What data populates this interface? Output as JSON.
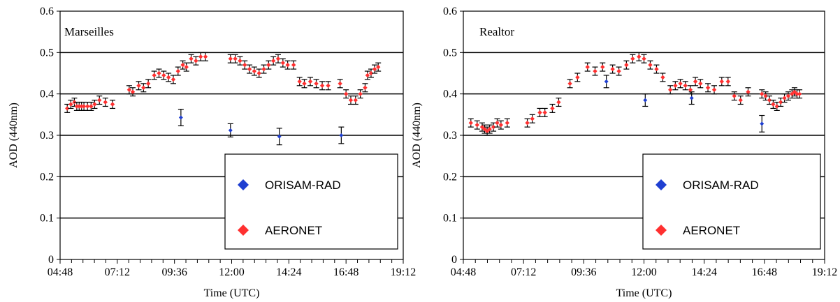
{
  "chart_data": [
    {
      "type": "scatter",
      "title": "Marseilles",
      "xlabel": "Time (UTC)",
      "ylabel": "AOD (440nm)",
      "ylim": [
        0,
        0.6
      ],
      "y_ticks": [
        "0",
        "0.1",
        "0.2",
        "0.3",
        "0.4",
        "0.5",
        "0.6"
      ],
      "x_ticks": [
        "04:48",
        "07:12",
        "09:36",
        "12:00",
        "14:24",
        "16:48",
        "19:12"
      ],
      "xlim_hours": [
        4.8,
        19.2
      ],
      "grid": "horizontal",
      "legend_position": "bottom-right",
      "series": [
        {
          "name": "ORISAM-RAD",
          "color": "#1f3fd1",
          "x_hours": [
            9.87,
            11.95,
            14.0,
            16.6
          ],
          "y": [
            0.343,
            0.312,
            0.297,
            0.3
          ],
          "err": [
            0.02,
            0.016,
            0.02,
            0.02
          ]
        },
        {
          "name": "AERONET",
          "color": "#ff3030",
          "x_hours": [
            5.1,
            5.25,
            5.4,
            5.5,
            5.6,
            5.7,
            5.8,
            5.95,
            6.1,
            6.25,
            6.45,
            6.7,
            7.0,
            7.7,
            7.85,
            8.1,
            8.3,
            8.5,
            8.75,
            8.95,
            9.15,
            9.35,
            9.55,
            9.75,
            9.95,
            10.1,
            10.3,
            10.5,
            10.7,
            10.9,
            11.95,
            12.15,
            12.35,
            12.55,
            12.75,
            12.95,
            13.15,
            13.35,
            13.55,
            13.75,
            13.95,
            14.15,
            14.35,
            14.6,
            14.85,
            15.05,
            15.3,
            15.55,
            15.8,
            16.05,
            16.55,
            16.8,
            17.0,
            17.2,
            17.4,
            17.6,
            17.7,
            17.85,
            18.0,
            18.15
          ],
          "y": [
            0.365,
            0.375,
            0.38,
            0.37,
            0.37,
            0.37,
            0.37,
            0.37,
            0.37,
            0.375,
            0.385,
            0.38,
            0.375,
            0.41,
            0.405,
            0.42,
            0.415,
            0.425,
            0.445,
            0.45,
            0.445,
            0.44,
            0.435,
            0.455,
            0.47,
            0.465,
            0.485,
            0.48,
            0.49,
            0.49,
            0.485,
            0.485,
            0.48,
            0.47,
            0.46,
            0.455,
            0.45,
            0.46,
            0.47,
            0.48,
            0.485,
            0.475,
            0.47,
            0.47,
            0.43,
            0.425,
            0.43,
            0.425,
            0.42,
            0.42,
            0.425,
            0.4,
            0.385,
            0.385,
            0.4,
            0.415,
            0.445,
            0.45,
            0.46,
            0.465
          ],
          "err": 0.01
        }
      ]
    },
    {
      "type": "scatter",
      "title": "Realtor",
      "xlabel": "Time (UTC)",
      "ylabel": "AOD (440nm)",
      "ylim": [
        0,
        0.6
      ],
      "y_ticks": [
        "0",
        "0.1",
        "0.2",
        "0.3",
        "0.4",
        "0.5",
        "0.6"
      ],
      "x_ticks": [
        "04:48",
        "07:12",
        "09:36",
        "12:00",
        "14:24",
        "16:48",
        "19:12"
      ],
      "xlim_hours": [
        4.8,
        19.2
      ],
      "grid": "horizontal",
      "legend_position": "bottom-right",
      "series": [
        {
          "name": "ORISAM-RAD",
          "color": "#1f3fd1",
          "x_hours": [
            10.5,
            12.05,
            13.9,
            16.7
          ],
          "y": [
            0.43,
            0.385,
            0.39,
            0.328
          ],
          "err": [
            0.015,
            0.015,
            0.015,
            0.02
          ]
        },
        {
          "name": "AERONET",
          "color": "#ff3030",
          "x_hours": [
            5.1,
            5.35,
            5.55,
            5.65,
            5.75,
            5.85,
            6.0,
            6.15,
            6.3,
            6.55,
            7.35,
            7.55,
            7.85,
            8.05,
            8.35,
            8.6,
            9.05,
            9.35,
            9.75,
            10.05,
            10.35,
            10.75,
            11.0,
            11.3,
            11.55,
            11.8,
            12.0,
            12.25,
            12.5,
            12.75,
            13.05,
            13.25,
            13.45,
            13.65,
            13.85,
            14.05,
            14.25,
            14.55,
            14.8,
            15.1,
            15.35,
            15.6,
            15.85,
            16.15,
            16.7,
            16.85,
            17.0,
            17.15,
            17.3,
            17.45,
            17.6,
            17.75,
            17.9,
            18.0,
            18.1,
            18.2
          ],
          "y": [
            0.33,
            0.325,
            0.32,
            0.315,
            0.31,
            0.315,
            0.32,
            0.33,
            0.325,
            0.33,
            0.33,
            0.34,
            0.355,
            0.355,
            0.365,
            0.38,
            0.425,
            0.44,
            0.465,
            0.455,
            0.465,
            0.46,
            0.455,
            0.47,
            0.485,
            0.49,
            0.485,
            0.47,
            0.46,
            0.44,
            0.41,
            0.42,
            0.425,
            0.42,
            0.41,
            0.43,
            0.425,
            0.415,
            0.41,
            0.43,
            0.43,
            0.395,
            0.385,
            0.405,
            0.4,
            0.395,
            0.385,
            0.375,
            0.37,
            0.38,
            0.39,
            0.395,
            0.4,
            0.405,
            0.4,
            0.4
          ],
          "err": 0.01
        }
      ]
    }
  ]
}
